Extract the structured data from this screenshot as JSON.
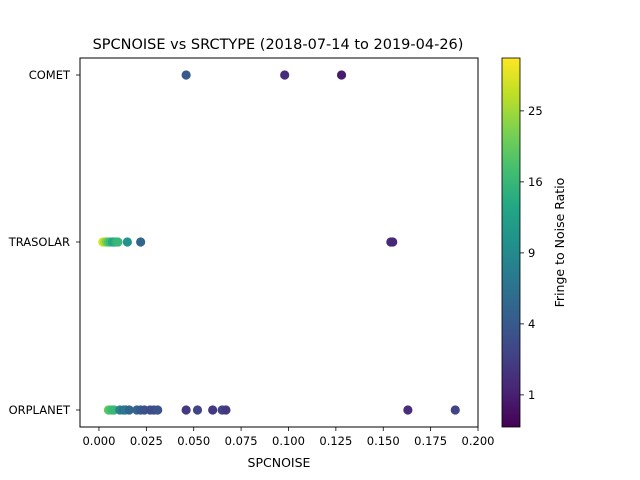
{
  "chart_data": {
    "type": "scatter",
    "title": "SPCNOISE vs SRCTYPE (2018-07-14 to 2019-04-26)",
    "xlabel": "SPCNOISE",
    "ylabel": "",
    "xlim": [
      -0.01,
      0.2
    ],
    "x_ticks": [
      "0.000",
      "0.025",
      "0.050",
      "0.075",
      "0.100",
      "0.125",
      "0.150",
      "0.175",
      "0.200"
    ],
    "x_tick_values": [
      0,
      0.025,
      0.05,
      0.075,
      0.1,
      0.125,
      0.15,
      0.175,
      0.2
    ],
    "categories": [
      "COMET",
      "EXTRASOLAR",
      "MINORPLANET"
    ],
    "category_tick_labels": [
      "COMET",
      "TRASOLAR",
      "ORPLANET"
    ],
    "grid": false,
    "colorbar": {
      "label": "Fringe to Noise Ratio",
      "colormap": "viridis",
      "scale": "sqrt",
      "range": [
        0.3,
        33
      ],
      "tick_labels": [
        "1",
        "4",
        "9",
        "16",
        "25"
      ],
      "tick_values": [
        1,
        4,
        9,
        16,
        25
      ]
    },
    "points": [
      {
        "x": 0.046,
        "y": "COMET",
        "c": 4.0
      },
      {
        "x": 0.098,
        "y": "COMET",
        "c": 1.5
      },
      {
        "x": 0.128,
        "y": "COMET",
        "c": 0.9
      },
      {
        "x": 0.002,
        "y": "EXTRASOLAR",
        "c": 30
      },
      {
        "x": 0.003,
        "y": "EXTRASOLAR",
        "c": 26
      },
      {
        "x": 0.004,
        "y": "EXTRASOLAR",
        "c": 22
      },
      {
        "x": 0.005,
        "y": "EXTRASOLAR",
        "c": 19
      },
      {
        "x": 0.006,
        "y": "EXTRASOLAR",
        "c": 17
      },
      {
        "x": 0.007,
        "y": "EXTRASOLAR",
        "c": 14
      },
      {
        "x": 0.008,
        "y": "EXTRASOLAR",
        "c": 13
      },
      {
        "x": 0.009,
        "y": "EXTRASOLAR",
        "c": 15
      },
      {
        "x": 0.01,
        "y": "EXTRASOLAR",
        "c": 16
      },
      {
        "x": 0.015,
        "y": "EXTRASOLAR",
        "c": 10
      },
      {
        "x": 0.022,
        "y": "EXTRASOLAR",
        "c": 5
      },
      {
        "x": 0.154,
        "y": "EXTRASOLAR",
        "c": 1.5
      },
      {
        "x": 0.155,
        "y": "EXTRASOLAR",
        "c": 1.3
      },
      {
        "x": 0.005,
        "y": "MINORPLANET",
        "c": 20
      },
      {
        "x": 0.006,
        "y": "MINORPLANET",
        "c": 18
      },
      {
        "x": 0.007,
        "y": "MINORPLANET",
        "c": 17
      },
      {
        "x": 0.008,
        "y": "MINORPLANET",
        "c": 16
      },
      {
        "x": 0.011,
        "y": "MINORPLANET",
        "c": 8
      },
      {
        "x": 0.013,
        "y": "MINORPLANET",
        "c": 6
      },
      {
        "x": 0.014,
        "y": "MINORPLANET",
        "c": 7
      },
      {
        "x": 0.016,
        "y": "MINORPLANET",
        "c": 5
      },
      {
        "x": 0.02,
        "y": "MINORPLANET",
        "c": 5
      },
      {
        "x": 0.022,
        "y": "MINORPLANET",
        "c": 4
      },
      {
        "x": 0.024,
        "y": "MINORPLANET",
        "c": 3.5
      },
      {
        "x": 0.027,
        "y": "MINORPLANET",
        "c": 3
      },
      {
        "x": 0.029,
        "y": "MINORPLANET",
        "c": 3
      },
      {
        "x": 0.031,
        "y": "MINORPLANET",
        "c": 3.5
      },
      {
        "x": 0.046,
        "y": "MINORPLANET",
        "c": 2
      },
      {
        "x": 0.052,
        "y": "MINORPLANET",
        "c": 2.5
      },
      {
        "x": 0.06,
        "y": "MINORPLANET",
        "c": 2
      },
      {
        "x": 0.065,
        "y": "MINORPLANET",
        "c": 2.5
      },
      {
        "x": 0.067,
        "y": "MINORPLANET",
        "c": 2
      },
      {
        "x": 0.163,
        "y": "MINORPLANET",
        "c": 1.5
      },
      {
        "x": 0.188,
        "y": "MINORPLANET",
        "c": 2.5
      }
    ]
  }
}
